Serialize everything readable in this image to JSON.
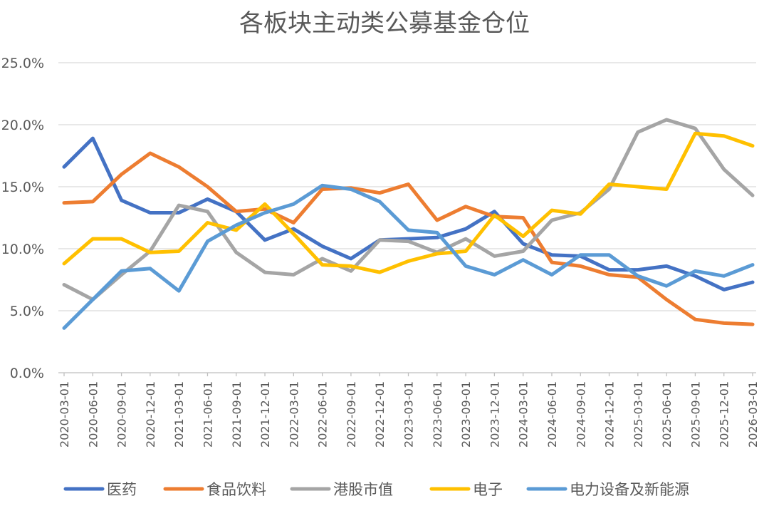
{
  "chart_data": {
    "type": "line",
    "title": "各板块主动类公募基金仓位",
    "xlabel": "",
    "ylabel": "",
    "ylim": [
      0,
      25
    ],
    "yticks": [
      "0.0%",
      "5.0%",
      "10.0%",
      "15.0%",
      "20.0%",
      "25.0%"
    ],
    "ytick_values": [
      0,
      5,
      10,
      15,
      20,
      25
    ],
    "grid": true,
    "legend_position": "bottom",
    "categories": [
      "2020-03-01",
      "2020-06-01",
      "2020-09-01",
      "2020-12-01",
      "2021-03-01",
      "2021-06-01",
      "2021-09-01",
      "2021-12-01",
      "2022-03-01",
      "2022-06-01",
      "2022-09-01",
      "2022-12-01",
      "2023-03-01",
      "2023-06-01",
      "2023-09-01",
      "2023-12-01",
      "2024-03-01",
      "2024-06-01",
      "2024-09-01",
      "2024-12-01",
      "2025-03-01",
      "2025-06-01",
      "2025-09-01",
      "2025-12-01",
      "2026-03-01"
    ],
    "series": [
      {
        "name": "医药",
        "color": "#4472c4",
        "values": [
          16.6,
          18.9,
          13.9,
          12.9,
          12.9,
          14.0,
          13.0,
          10.7,
          11.6,
          10.2,
          9.2,
          10.7,
          10.8,
          10.9,
          11.6,
          13.0,
          10.4,
          9.5,
          9.4,
          8.3,
          8.3,
          8.6,
          7.8,
          6.7,
          7.3
        ]
      },
      {
        "name": "食品饮料",
        "color": "#ed7d31",
        "values": [
          13.7,
          13.8,
          16.0,
          17.7,
          16.6,
          15.0,
          13.0,
          13.2,
          12.1,
          14.8,
          14.9,
          14.5,
          15.2,
          12.3,
          13.4,
          12.6,
          12.5,
          8.9,
          8.6,
          7.9,
          7.7,
          5.9,
          4.3,
          4.0,
          3.9
        ]
      },
      {
        "name": "港股市值",
        "color": "#a5a5a5",
        "values": [
          7.1,
          5.9,
          7.9,
          9.8,
          13.5,
          13.0,
          9.7,
          8.1,
          7.9,
          9.2,
          8.2,
          10.7,
          10.6,
          9.7,
          10.8,
          9.4,
          9.8,
          12.3,
          12.9,
          14.8,
          19.4,
          20.4,
          19.7,
          16.4,
          14.3
        ]
      },
      {
        "name": "电子",
        "color": "#ffc000",
        "values": [
          8.8,
          10.8,
          10.8,
          9.7,
          9.8,
          12.1,
          11.5,
          13.6,
          11.2,
          8.7,
          8.6,
          8.1,
          9.0,
          9.6,
          9.8,
          12.7,
          11.0,
          13.1,
          12.8,
          15.2,
          15.0,
          14.8,
          19.3,
          19.1,
          18.3
        ]
      },
      {
        "name": "电力设备及新能源",
        "color": "#5b9bd5",
        "values": [
          3.6,
          5.9,
          8.2,
          8.4,
          6.6,
          10.6,
          11.9,
          12.9,
          13.6,
          15.1,
          14.8,
          13.8,
          11.5,
          11.3,
          8.6,
          7.9,
          9.1,
          7.9,
          9.5,
          9.5,
          7.8,
          7.0,
          8.2,
          7.8,
          8.7
        ]
      }
    ]
  }
}
